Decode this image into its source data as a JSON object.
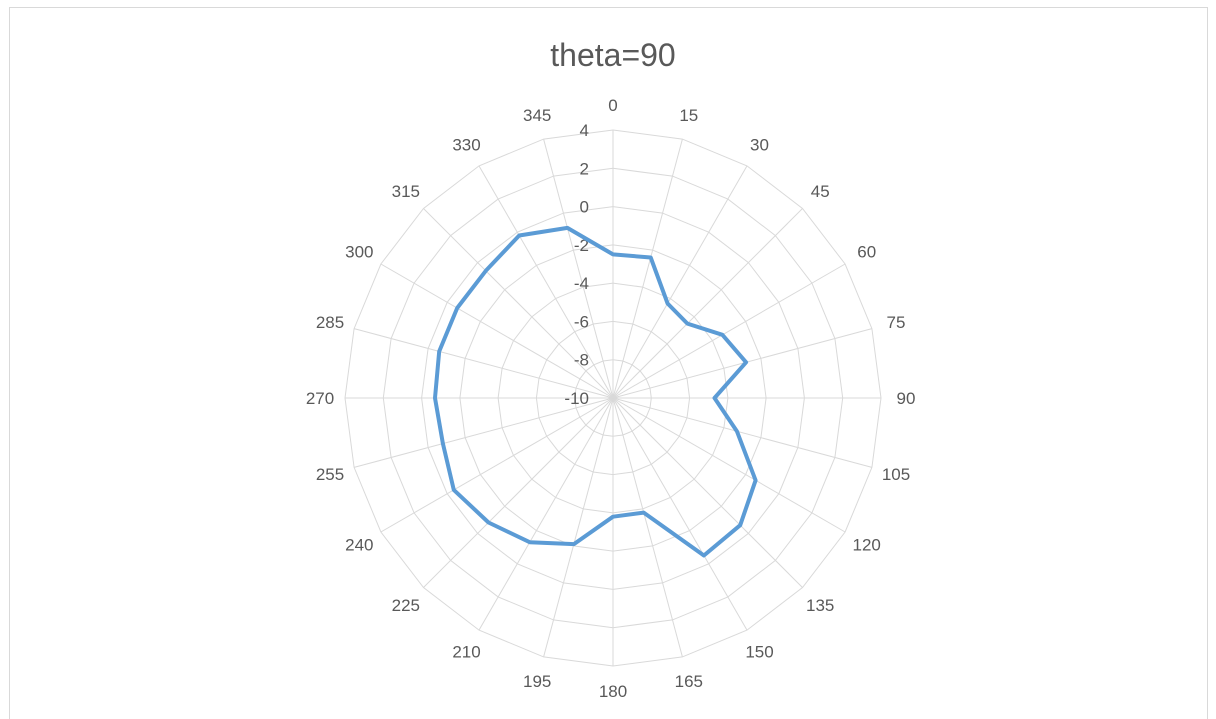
{
  "chart_data": {
    "type": "radar",
    "title": "theta=90",
    "categories": [
      "0",
      "15",
      "30",
      "45",
      "60",
      "75",
      "90",
      "105",
      "120",
      "135",
      "150",
      "165",
      "180",
      "195",
      "210",
      "225",
      "240",
      "255",
      "270",
      "285",
      "300",
      "315",
      "330",
      "345"
    ],
    "series": [
      {
        "color": "#5b9bd5",
        "values": [
          -2.5,
          -2.4,
          -4.3,
          -4.5,
          -3.4,
          -2.8,
          -4.7,
          -3.3,
          -1.4,
          -0.6,
          -0.5,
          -3.8,
          -3.8,
          -2.1,
          -1.3,
          -0.8,
          -0.4,
          -0.8,
          -0.7,
          -0.6,
          -0.6,
          -0.6,
          -0.2,
          -0.8
        ]
      }
    ],
    "radial_axis": {
      "min": -10,
      "max": 4,
      "step": 2,
      "ticks": [
        "4",
        "2",
        "0",
        "-2",
        "-4",
        "-6",
        "-8",
        "-10"
      ]
    },
    "grid": true,
    "grid_color": "#d9d9d9",
    "legend": "none"
  }
}
